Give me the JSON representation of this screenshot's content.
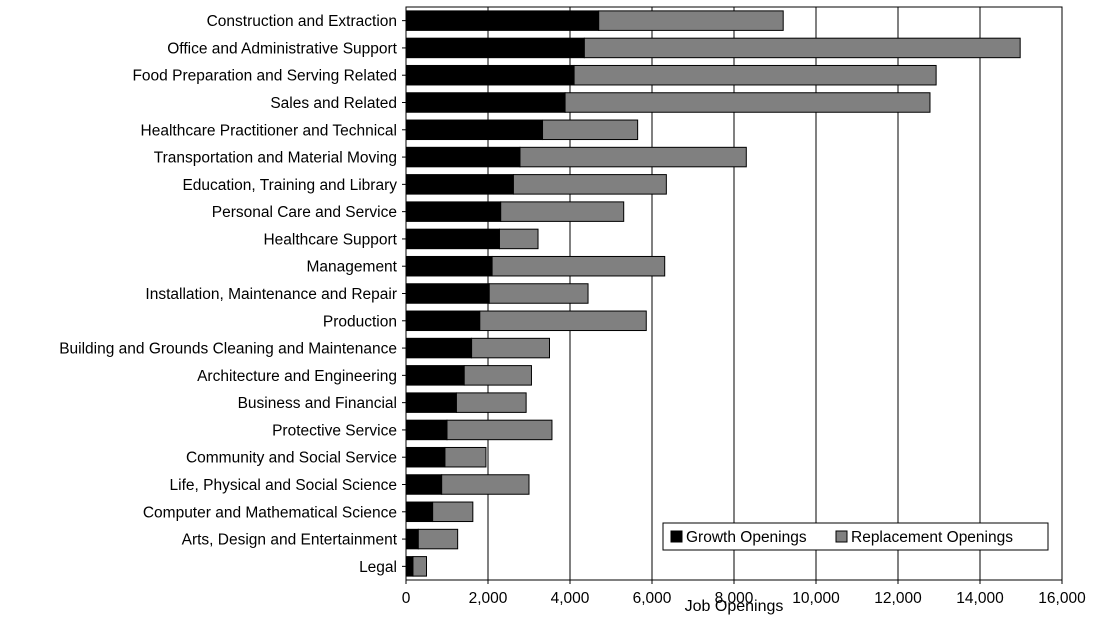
{
  "chart_data": {
    "type": "bar",
    "orientation": "horizontal",
    "stacked": true,
    "categories": [
      "Construction and Extraction",
      "Office and Administrative Support",
      "Food Preparation and Serving Related",
      "Sales and Related",
      "Healthcare Practitioner and Technical",
      "Transportation and Material Moving",
      "Education, Training and Library",
      "Personal Care and Service",
      "Healthcare Support",
      "Management",
      "Installation, Maintenance and Repair",
      "Production",
      "Building and Grounds Cleaning and Maintenance",
      "Architecture and Engineering",
      "Business and Financial",
      "Protective Service",
      "Community and Social Service",
      "Life, Physical and Social Science",
      "Computer and Mathematical Science",
      "Arts, Design and Entertainment",
      "Legal"
    ],
    "series": [
      {
        "name": "Growth Openings",
        "color": "#000000",
        "values": [
          4700,
          4350,
          4100,
          3880,
          3330,
          2780,
          2620,
          2310,
          2280,
          2100,
          2030,
          1800,
          1600,
          1420,
          1230,
          1000,
          950,
          870,
          650,
          300,
          170
        ]
      },
      {
        "name": "Replacement Openings",
        "color": "#808080",
        "values": [
          4500,
          10630,
          8830,
          8900,
          2320,
          5520,
          3730,
          3000,
          940,
          4210,
          2410,
          4060,
          1900,
          1640,
          1700,
          2560,
          1000,
          2130,
          980,
          960,
          330
        ]
      }
    ],
    "xlabel": "Job Openings",
    "ylabel": "",
    "title": "",
    "xlim": [
      0,
      16000
    ],
    "xticks": [
      0,
      2000,
      4000,
      6000,
      8000,
      10000,
      12000,
      14000,
      16000
    ],
    "xtick_labels": [
      "0",
      "2,000",
      "4,000",
      "6,000",
      "8,000",
      "10,000",
      "12,000",
      "14,000",
      "16,000"
    ],
    "grid": "vertical",
    "legend_position": "bottom-right"
  }
}
